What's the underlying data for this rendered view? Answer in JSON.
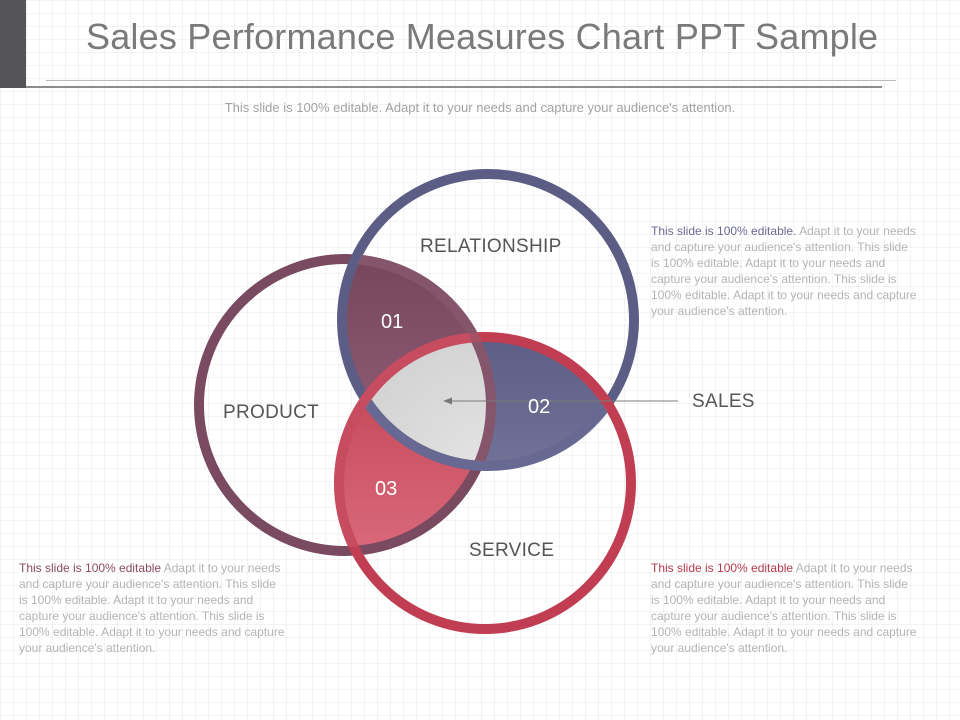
{
  "title": "Sales Performance Measures Chart PPT Sample",
  "subtitle": "This slide is 100% editable. Adapt it to your needs and capture your audience's attention.",
  "circles": {
    "relationship": {
      "label": "RELATIONSHIP",
      "color": "#5c5d84"
    },
    "product": {
      "label": "PRODUCT",
      "color": "#7a4a60"
    },
    "service": {
      "label": "SERVICE",
      "color": "#c13e52"
    }
  },
  "segments": {
    "seg1": {
      "number": "01",
      "color": "#7c4a5e"
    },
    "seg2": {
      "number": "02",
      "color": "#6f6f96"
    },
    "seg3": {
      "number": "03",
      "color": "#c84858"
    },
    "center": {
      "color": "#d7d7d7"
    }
  },
  "sales_label": "SALES",
  "notes": {
    "top_right": {
      "lead": "This slide is 100% editable.",
      "body": " Adapt it to your needs and capture your audience's attention. This slide is 100% editable. Adapt it to your needs and capture your audience's attention. This slide is 100% editable. Adapt it to your needs and capture your audience's attention.",
      "lead_color": "#6a6a92"
    },
    "bottom_left": {
      "lead": "This slide is 100% editable",
      "body": " Adapt it to your needs and capture your audience's attention. This slide is 100% editable. Adapt it to your needs and capture your audience's attention. This slide is 100% editable. Adapt it to your needs and capture your audience's attention.",
      "lead_color": "#8a4a60"
    },
    "bottom_right": {
      "lead": "This slide is 100% editable",
      "body": " Adapt it to your needs and capture your audience's attention. This slide is 100% editable. Adapt it to your needs and capture your audience's attention. This slide is 100% editable. Adapt it to your needs and capture your audience's attention.",
      "lead_color": "#b63a4c"
    }
  }
}
